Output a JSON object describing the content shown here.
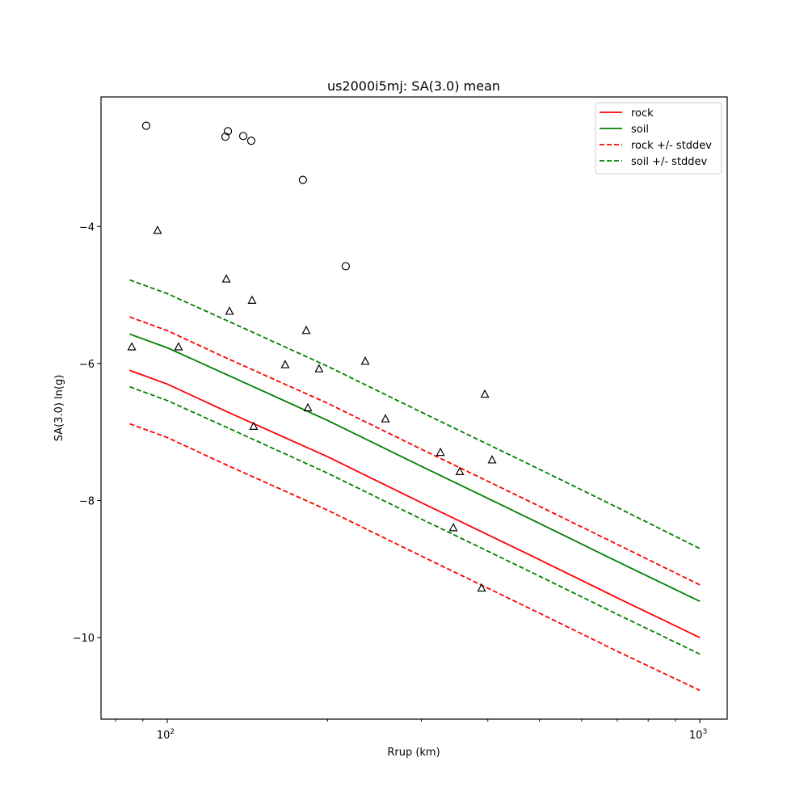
{
  "chart_data": {
    "type": "line",
    "title": "us2000i5mj: SA(3.0) mean",
    "xlabel": "Rrup (km)",
    "ylabel": "SA(3.0) ln(g)",
    "xscale": "log",
    "xlim": [
      75.1,
      1126
    ],
    "ylim": [
      -11.19,
      -2.11
    ],
    "xticks": [
      {
        "value": 100,
        "base": "10",
        "exp": "2"
      },
      {
        "value": 1000,
        "base": "10",
        "exp": "3"
      }
    ],
    "xminor": [
      80,
      90,
      200,
      300,
      400,
      500,
      600,
      700,
      800,
      900
    ],
    "yticks": [
      {
        "value": -4,
        "label": "−4"
      },
      {
        "value": -6,
        "label": "−6"
      },
      {
        "value": -8,
        "label": "−8"
      },
      {
        "value": -10,
        "label": "−10"
      }
    ],
    "grid": false,
    "legend_position": "top-right",
    "x": [
      85,
      100,
      130,
      200,
      300,
      490,
      700,
      1000
    ],
    "series": [
      {
        "name": "rock",
        "color": "#ff0000",
        "dash": false,
        "values": [
          -6.1,
          -6.3,
          -6.71,
          -7.36,
          -8.03,
          -8.83,
          -9.42,
          -10.0
        ]
      },
      {
        "name": "soil",
        "color": "#008000",
        "dash": false,
        "values": [
          -5.57,
          -5.77,
          -6.17,
          -6.83,
          -7.5,
          -8.3,
          -8.89,
          -9.47
        ]
      },
      {
        "name": "rock +/- stddev",
        "color": "#ff0000",
        "dash": true,
        "values": [
          -5.32,
          -5.52,
          -5.93,
          -6.58,
          -7.25,
          -8.05,
          -8.64,
          -9.23
        ]
      },
      {
        "name": "",
        "color": "#ff0000",
        "dash": true,
        "legend": false,
        "values": [
          -6.88,
          -7.08,
          -7.49,
          -8.14,
          -8.81,
          -9.61,
          -10.2,
          -10.77
        ]
      },
      {
        "name": "soil +/- stddev",
        "color": "#008000",
        "dash": true,
        "values": [
          -4.78,
          -4.98,
          -5.38,
          -6.04,
          -6.71,
          -7.51,
          -8.1,
          -8.7
        ]
      },
      {
        "name": "",
        "color": "#008000",
        "dash": true,
        "legend": false,
        "values": [
          -6.34,
          -6.54,
          -6.94,
          -7.6,
          -8.27,
          -9.07,
          -9.66,
          -10.24
        ]
      }
    ],
    "circles": [
      [
        91.3,
        -2.53
      ],
      [
        130,
        -2.61
      ],
      [
        128.6,
        -2.69
      ],
      [
        138.9,
        -2.68
      ],
      [
        143.8,
        -2.75
      ],
      [
        179.8,
        -3.32
      ],
      [
        216.4,
        -4.58
      ]
    ],
    "triangles": [
      [
        85.8,
        -5.76
      ],
      [
        95.9,
        -4.06
      ],
      [
        105,
        -5.76
      ],
      [
        129.1,
        -4.77
      ],
      [
        130.9,
        -5.24
      ],
      [
        144.3,
        -5.08
      ],
      [
        145.3,
        -6.92
      ],
      [
        166.5,
        -6.02
      ],
      [
        182.4,
        -5.52
      ],
      [
        183.7,
        -6.65
      ],
      [
        192.8,
        -6.08
      ],
      [
        235.4,
        -5.97
      ],
      [
        256.9,
        -6.81
      ],
      [
        325.9,
        -7.3
      ],
      [
        344.5,
        -8.4
      ],
      [
        354.3,
        -7.58
      ],
      [
        389.4,
        -9.28
      ],
      [
        394.9,
        -6.45
      ],
      [
        407.4,
        -7.41
      ]
    ]
  }
}
